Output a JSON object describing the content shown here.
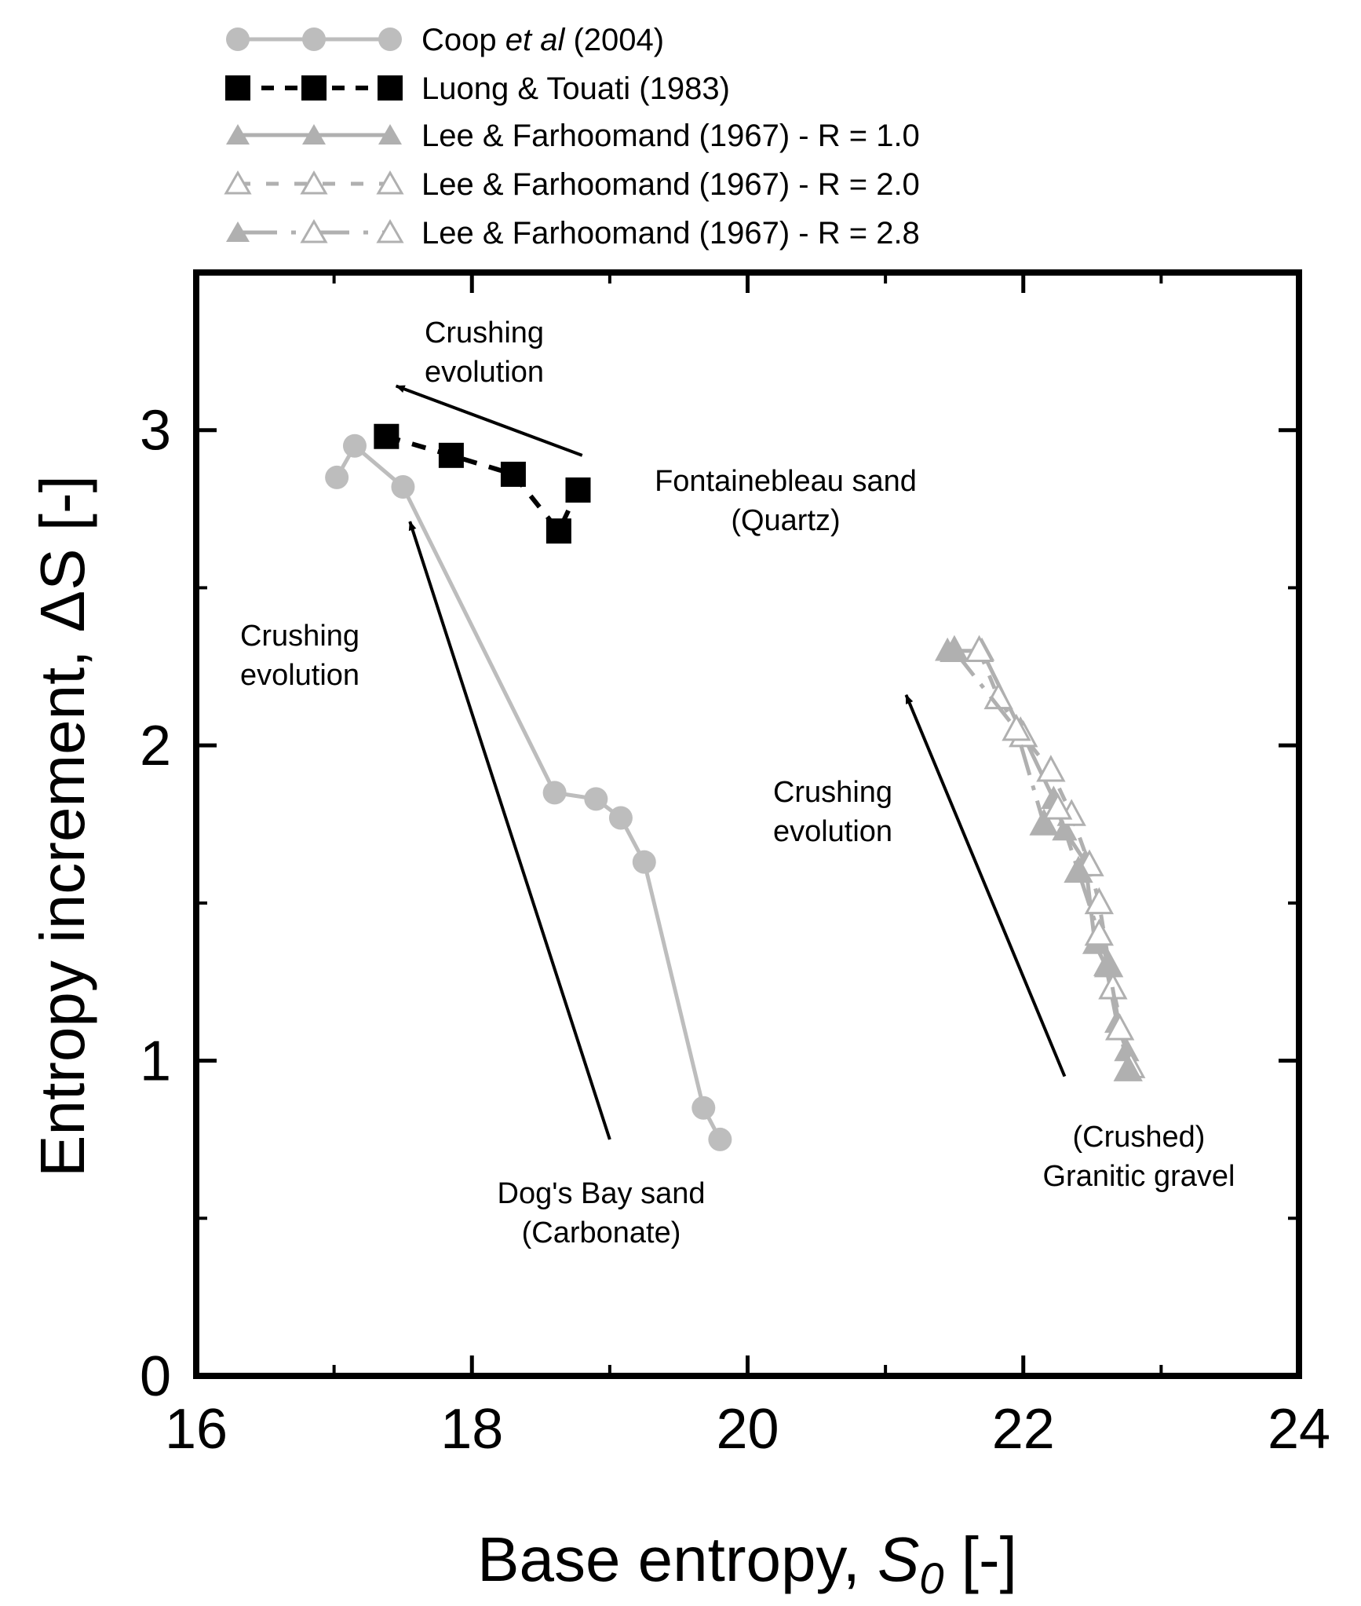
{
  "chart_data": {
    "type": "scatter",
    "xlabel": "Base entropy, S₀ [-]",
    "xlabel_main": "Base entropy, ",
    "xlabel_symbol": "S",
    "xlabel_sub": "0",
    "xlabel_unit": " [-]",
    "ylabel": "Entropy increment, ΔS [-]",
    "xlim": [
      16,
      24
    ],
    "ylim": [
      0,
      3.5
    ],
    "x_major_ticks": [
      16,
      18,
      20,
      22,
      24
    ],
    "x_minor_ticks": [
      17,
      19,
      21,
      23
    ],
    "y_major_ticks": [
      0,
      1,
      2,
      3
    ],
    "y_minor_ticks": [
      0.5,
      1.5,
      2.5
    ],
    "x_tick_labels": [
      "16",
      "18",
      "20",
      "22",
      "24"
    ],
    "y_tick_labels": [
      "0",
      "1",
      "2",
      "3"
    ],
    "grid": false,
    "legend_position": "top-left, above plot",
    "series": [
      {
        "name": "Coop et al (2004)",
        "name_parts": [
          "Coop ",
          "et al",
          " (2004)"
        ],
        "marker": "circle",
        "line": "solid",
        "color": "#bdbdbd",
        "x": [
          17.02,
          17.15,
          17.5,
          18.6,
          18.9,
          19.08,
          19.25,
          19.68,
          19.8
        ],
        "y": [
          2.85,
          2.95,
          2.82,
          1.85,
          1.83,
          1.77,
          1.63,
          0.85,
          0.75
        ]
      },
      {
        "name": "Luong & Touati (1983)",
        "marker": "square",
        "line": "dashed",
        "color": "#000000",
        "x": [
          17.38,
          17.85,
          18.3,
          18.63,
          18.77
        ],
        "y": [
          2.98,
          2.92,
          2.86,
          2.68,
          2.81
        ]
      },
      {
        "name": "Lee & Farhoomand (1967) - R = 1.0",
        "marker": "triangle",
        "line": "solid",
        "color": "#b0b0b0",
        "x": [
          21.45,
          21.7,
          21.98,
          22.22,
          22.3,
          22.45,
          22.52,
          22.6,
          22.68,
          22.75
        ],
        "y": [
          2.3,
          2.3,
          2.05,
          1.83,
          1.73,
          1.63,
          1.37,
          1.3,
          1.12,
          1.03
        ]
      },
      {
        "name": "Lee & Farhoomand (1967) - R = 2.0",
        "marker": "triangle-open",
        "line": "dashed",
        "color": "#b0b0b0",
        "x": [
          21.68,
          21.82,
          22.0,
          22.2,
          22.35,
          22.48,
          22.55,
          22.65,
          22.78
        ],
        "y": [
          2.3,
          2.15,
          2.03,
          1.92,
          1.78,
          1.62,
          1.5,
          1.23,
          0.98
        ]
      },
      {
        "name": "Lee & Farhoomand (1967) - R = 2.8",
        "marker": "triangle-mixed",
        "line": "dashdot",
        "color": "#b0b0b0",
        "x": [
          21.5,
          21.95,
          22.15,
          22.25,
          22.4,
          22.55,
          22.62,
          22.7,
          22.76
        ],
        "y": [
          2.3,
          2.05,
          1.75,
          1.8,
          1.6,
          1.4,
          1.3,
          1.1,
          0.97
        ]
      }
    ],
    "annotations": [
      {
        "id": "quartz-crush",
        "lines": [
          "Crushing",
          "evolution"
        ],
        "arrow_from": [
          18.8,
          2.92
        ],
        "arrow_to": [
          17.45,
          3.14
        ]
      },
      {
        "id": "carb-crush",
        "lines": [
          "Crushing",
          "evolution"
        ],
        "arrow_from": [
          19.0,
          0.75
        ],
        "arrow_to": [
          17.55,
          2.71
        ]
      },
      {
        "id": "gran-crush",
        "lines": [
          "Crushing",
          "evolution"
        ],
        "arrow_from": [
          22.3,
          0.95
        ],
        "arrow_to": [
          21.15,
          2.16
        ]
      },
      {
        "id": "fontainebleau",
        "lines": [
          "Fontainebleau sand",
          "(Quartz)"
        ]
      },
      {
        "id": "dogs-bay",
        "lines": [
          "Dog's Bay sand",
          "(Carbonate)"
        ]
      },
      {
        "id": "granitic",
        "lines": [
          "(Crushed)",
          "Granitic gravel"
        ]
      }
    ]
  }
}
